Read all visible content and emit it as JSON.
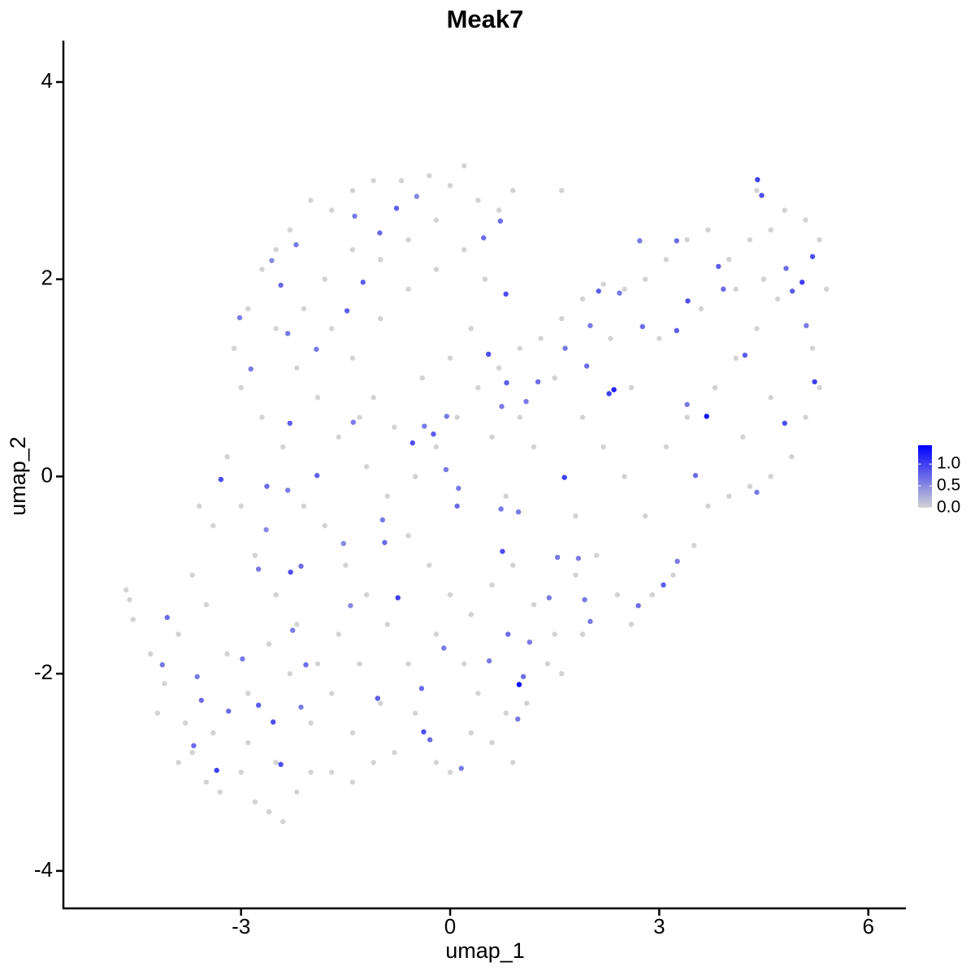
{
  "chart_data": {
    "type": "scatter",
    "title": "Meak7",
    "x_label": "umap_1",
    "y_label": "umap_2",
    "xlim": [
      -5.55,
      6.54
    ],
    "xticks": [
      -3,
      0,
      3,
      6
    ],
    "ylim": [
      -4.38,
      4.42
    ],
    "yticks": [
      -4,
      -2,
      0,
      2,
      4
    ],
    "color_scale": {
      "low": "#d3d3d3",
      "high": "#0000ff",
      "lim": [
        0,
        1.43
      ],
      "ticks": [
        {
          "value": 0,
          "label": "0.0"
        },
        {
          "value": 0.5,
          "label": "0.5"
        },
        {
          "value": 1,
          "label": "1.0"
        }
      ]
    },
    "x": [
      -4.65,
      -4.6,
      -4.55,
      -4.3,
      -4.1,
      -3.9,
      -3.8,
      -3.7,
      -3.5,
      -3.3,
      -3.0,
      -2.8,
      -2.6,
      -2.4,
      -2.2,
      -2.0,
      -1.4,
      -1.4,
      -1.7,
      -2.0,
      -2.3,
      -2.6,
      -2.9,
      -3.2,
      -3.5,
      -3.7,
      -3.4,
      -3.6,
      -3.2,
      -3.0,
      -2.8,
      -2.5,
      -2.2,
      -1.9,
      -1.6,
      -1.3,
      -1.0,
      -0.8,
      -0.5,
      -0.2,
      0.0,
      0.3,
      0.6,
      0.8,
      0.9,
      0.4,
      0.2,
      -0.2,
      -0.6,
      -0.9,
      -1.2,
      -1.5,
      -1.8,
      -2.1,
      -2.4,
      -2.7,
      -3.0,
      -3.1,
      -2.9,
      -2.7,
      -2.5,
      -2.3,
      -2.0,
      -1.7,
      -1.4,
      -1.1,
      -0.7,
      -0.3,
      0.0,
      0.2,
      0.4,
      0.7,
      0.9,
      -0.2,
      -0.6,
      -1.0,
      -1.4,
      -1.8,
      -2.1,
      -2.5,
      -2.2,
      -1.9,
      -1.6,
      -1.2,
      -0.9,
      -0.6,
      -0.3,
      0.0,
      0.3,
      0.6,
      0.9,
      1.2,
      1.4,
      1.1,
      1.5,
      1.8,
      2.1,
      2.4,
      2.6,
      2.9,
      3.2,
      3.5,
      3.7,
      4.0,
      4.3,
      4.6,
      4.9,
      5.1,
      5.3,
      5.2,
      5.4,
      5.3,
      5.1,
      4.8,
      4.6,
      4.3,
      4.0,
      3.7,
      3.4,
      3.1,
      2.8,
      2.5,
      2.2,
      1.9,
      1.6,
      1.3,
      1.0,
      0.7,
      0.4,
      0.1,
      -0.2,
      -0.5,
      -0.8,
      -1.1,
      -1.4,
      -1.7,
      -1.0,
      -0.6,
      -0.2,
      0.2,
      0.5,
      0.3,
      0.0,
      -0.4,
      1.5,
      1.9,
      2.2,
      2.5,
      2.8,
      3.1,
      3.4,
      3.8,
      4.1,
      4.4,
      4.7,
      4.2,
      4.6,
      3.0,
      2.6,
      1.8,
      1.2,
      0.8,
      1.0,
      3.6,
      4.1,
      4.5,
      2.3,
      1.6,
      1.9,
      0.6,
      -3.9,
      -4.2,
      -3.4,
      -2.9,
      -1.1,
      -1.7,
      -2.5,
      1.6,
      4.4,
      -1.3,
      -0.77,
      -1.37,
      -1.01,
      0.48,
      0.72,
      -0.48,
      -1.25,
      -2.43,
      -3.02,
      -2.56,
      -1.48,
      -1.92,
      -2.33,
      -2.86,
      -2.3,
      -1.39,
      -1.91,
      -3.29,
      -2.63,
      -2.33,
      -2.64,
      -2.75,
      -2.29,
      -2.14,
      -1.53,
      -0.97,
      -0.94,
      -0.75,
      -4.06,
      -4.13,
      -3.63,
      -3.57,
      -3.35,
      -2.75,
      -2.54,
      -2.43,
      -2.14,
      -2.07,
      -2.98,
      -1.04,
      -0.38,
      -0.29,
      0.16,
      -0.41,
      -0.09,
      0.56,
      0.83,
      1.14,
      1.05,
      0.97,
      0.99,
      1.42,
      1.93,
      2.01,
      0.75,
      1.54,
      1.84,
      0.73,
      0.98,
      0.1,
      0.12,
      -0.06,
      -0.54,
      -0.24,
      -0.05,
      -0.37,
      0.55,
      0.74,
      1.09,
      1.26,
      1.65,
      1.96,
      2.01,
      2.13,
      2.28,
      2.35,
      1.64,
      0.81,
      0.8,
      2.43,
      2.76,
      3.25,
      3.41,
      3.25,
      3.4,
      3.68,
      3.92,
      3.85,
      4.23,
      4.47,
      4.41,
      4.82,
      4.91,
      5.05,
      5.2,
      5.23,
      4.8,
      5.11,
      3.52,
      4.4,
      3.06,
      2.7,
      3.26,
      2.72,
      -2.21,
      -1.43,
      -2.26,
      -3.18,
      -3.68
    ],
    "y": [
      -1.15,
      -1.25,
      -1.45,
      -1.8,
      -2.1,
      -1.6,
      -2.5,
      -2.8,
      -3.1,
      -3.2,
      -3.0,
      -3.3,
      -3.4,
      -3.5,
      -3.2,
      -3.0,
      -3.1,
      -2.6,
      -2.2,
      -2.5,
      -2.0,
      -1.7,
      -2.2,
      -1.8,
      -1.3,
      -1.0,
      -0.5,
      -0.3,
      0.2,
      -0.3,
      -0.8,
      -1.2,
      -1.5,
      -1.9,
      -1.6,
      -1.9,
      -2.3,
      -2.8,
      -2.4,
      -2.9,
      -3.0,
      -2.6,
      -2.7,
      -2.4,
      -2.9,
      -2.2,
      -1.9,
      -1.6,
      -1.9,
      -1.5,
      -1.2,
      -0.9,
      -0.5,
      -0.3,
      0.3,
      0.6,
      0.9,
      1.3,
      1.7,
      2.1,
      2.3,
      2.5,
      2.8,
      2.7,
      2.9,
      3.0,
      3.0,
      3.05,
      2.95,
      3.15,
      2.8,
      2.7,
      2.9,
      2.6,
      2.4,
      2.2,
      2.3,
      2.0,
      1.7,
      1.5,
      1.1,
      0.8,
      0.4,
      0.1,
      -0.2,
      -0.6,
      -0.9,
      -1.2,
      -1.4,
      -1.1,
      -0.9,
      -1.3,
      -1.9,
      -2.3,
      -1.6,
      -1.0,
      -0.8,
      -1.2,
      -1.5,
      -1.2,
      -1.0,
      -0.7,
      -0.3,
      -0.2,
      -0.1,
      0.0,
      0.2,
      0.6,
      0.9,
      1.3,
      1.9,
      2.4,
      2.6,
      2.7,
      2.5,
      2.4,
      2.2,
      2.5,
      2.4,
      2.2,
      2.0,
      1.9,
      1.95,
      1.8,
      1.6,
      1.4,
      1.3,
      1.1,
      0.9,
      0.6,
      0.3,
      0.0,
      0.5,
      0.8,
      1.2,
      1.5,
      1.6,
      1.9,
      2.1,
      2.3,
      2.0,
      1.5,
      1.2,
      1.0,
      1.0,
      0.6,
      0.3,
      0.0,
      -0.4,
      0.3,
      0.6,
      0.9,
      1.2,
      1.5,
      1.8,
      0.4,
      0.8,
      1.4,
      0.9,
      -0.4,
      0.3,
      -0.2,
      0.6,
      1.7,
      1.9,
      2.0,
      1.4,
      -2.0,
      -1.6,
      0.4,
      -2.9,
      -2.4,
      -2.6,
      -2.7,
      -2.9,
      -3.0,
      -2.9,
      2.9,
      2.9,
      0.6,
      2.72,
      2.64,
      2.47,
      2.42,
      2.59,
      2.84,
      1.97,
      1.94,
      1.61,
      2.19,
      1.68,
      1.29,
      1.45,
      1.09,
      0.54,
      0.55,
      0.01,
      -0.03,
      -0.1,
      -0.14,
      -0.54,
      -0.94,
      -0.97,
      -0.91,
      -0.68,
      -0.44,
      -0.67,
      -1.23,
      -1.43,
      -1.91,
      -2.03,
      -2.27,
      -2.98,
      -2.32,
      -2.49,
      -2.92,
      -2.34,
      -1.91,
      -1.85,
      -2.25,
      -2.59,
      -2.67,
      -2.96,
      -2.15,
      -1.74,
      -1.87,
      -1.6,
      -1.68,
      -2.03,
      -2.46,
      -2.11,
      -1.23,
      -1.25,
      -1.47,
      -0.76,
      -0.82,
      -0.83,
      -0.33,
      -0.36,
      -0.3,
      -0.12,
      0.07,
      0.34,
      0.43,
      0.61,
      0.51,
      1.24,
      0.71,
      0.76,
      0.96,
      1.3,
      1.12,
      1.53,
      1.88,
      0.84,
      0.88,
      -0.01,
      0.95,
      1.85,
      1.86,
      1.52,
      1.48,
      1.78,
      2.39,
      0.73,
      0.61,
      1.9,
      2.13,
      1.23,
      2.85,
      3.01,
      2.11,
      1.88,
      1.97,
      2.23,
      0.96,
      0.54,
      1.53,
      0.01,
      -0.16,
      -1.1,
      -1.31,
      -0.86,
      2.39,
      2.35,
      -1.31,
      -1.56,
      -2.38,
      -2.73
    ],
    "expression": [
      0,
      0,
      0,
      0,
      0,
      0,
      0,
      0,
      0,
      0,
      0,
      0,
      0,
      0,
      0,
      0,
      0,
      0,
      0,
      0,
      0,
      0,
      0,
      0,
      0,
      0,
      0,
      0,
      0,
      0,
      0,
      0,
      0,
      0,
      0,
      0,
      0,
      0,
      0,
      0,
      0,
      0,
      0,
      0,
      0,
      0,
      0,
      0,
      0,
      0,
      0,
      0,
      0,
      0,
      0,
      0,
      0,
      0,
      0,
      0,
      0,
      0,
      0,
      0,
      0,
      0,
      0,
      0,
      0,
      0,
      0,
      0,
      0,
      0,
      0,
      0,
      0,
      0,
      0,
      0,
      0,
      0,
      0,
      0,
      0,
      0,
      0,
      0,
      0,
      0,
      0,
      0,
      0,
      0,
      0,
      0,
      0,
      0,
      0,
      0,
      0,
      0,
      0,
      0,
      0,
      0,
      0,
      0,
      0,
      0,
      0,
      0,
      0,
      0,
      0,
      0,
      0,
      0,
      0,
      0,
      0,
      0,
      0,
      0,
      0,
      0,
      0,
      0,
      0,
      0,
      0,
      0,
      0,
      0,
      0,
      0,
      0,
      0,
      0,
      0,
      0,
      0,
      0,
      0,
      0,
      0,
      0,
      0,
      0,
      0,
      0,
      0,
      0,
      0,
      0,
      0,
      0,
      0,
      0,
      0,
      0,
      0,
      0,
      0,
      0,
      0,
      0,
      0,
      0,
      0,
      0,
      0,
      0,
      0,
      0,
      0,
      0,
      0,
      0,
      0,
      0.8,
      0.6,
      0.7,
      0.7,
      0.7,
      0.5,
      0.8,
      0.7,
      0.6,
      0.5,
      0.8,
      0.6,
      0.6,
      0.6,
      0.8,
      0.6,
      0.8,
      0.9,
      0.7,
      0.6,
      0.5,
      0.6,
      0.9,
      0.7,
      0.5,
      0.6,
      0.7,
      1.0,
      0.7,
      0.6,
      0.6,
      0.7,
      1.0,
      0.8,
      0.9,
      0.9,
      0.6,
      0.7,
      0.6,
      0.8,
      0.9,
      0.7,
      0.6,
      0.7,
      0.6,
      0.6,
      0.7,
      0.6,
      0.7,
      0.6,
      1.4,
      0.6,
      0.6,
      0.6,
      0.9,
      0.6,
      0.6,
      0.6,
      0.6,
      0.7,
      0.6,
      0.6,
      0.9,
      0.8,
      0.6,
      0.6,
      0.9,
      0.6,
      0.6,
      0.7,
      0.6,
      0.7,
      0.6,
      0.8,
      1.0,
      1.2,
      1.0,
      0.8,
      0.9,
      0.6,
      0.7,
      0.8,
      0.9,
      0.7,
      0.6,
      1.3,
      0.7,
      0.8,
      0.8,
      0.9,
      1.0,
      0.7,
      0.8,
      1.0,
      0.9,
      1.0,
      0.9,
      0.6,
      0.7,
      0.6,
      0.8,
      0.7,
      0.6,
      0.6,
      0.6,
      0.5,
      0.6,
      0.7,
      0.7
    ]
  }
}
